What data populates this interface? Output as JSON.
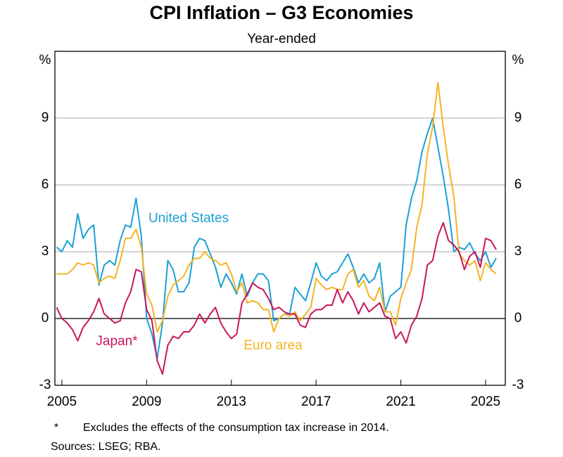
{
  "chart_data": {
    "type": "line",
    "title": "CPI Inflation – G3 Economies",
    "subtitle": "Year-ended",
    "y_unit": "%",
    "y2_unit": "%",
    "footnote_marker": "*",
    "footnote": "Excludes the effects of the consumption tax increase in 2014.",
    "sources": "Sources: LSEG; RBA.",
    "x": [
      2004.75,
      2005,
      2005.25,
      2005.5,
      2005.75,
      2006,
      2006.25,
      2006.5,
      2006.75,
      2007,
      2007.25,
      2007.5,
      2007.75,
      2008,
      2008.25,
      2008.5,
      2008.75,
      2009,
      2009.25,
      2009.5,
      2009.75,
      2010,
      2010.25,
      2010.5,
      2010.75,
      2011,
      2011.25,
      2011.5,
      2011.75,
      2012,
      2012.25,
      2012.5,
      2012.75,
      2013,
      2013.25,
      2013.5,
      2013.75,
      2014,
      2014.25,
      2014.5,
      2014.75,
      2015,
      2015.25,
      2015.5,
      2015.75,
      2016,
      2016.25,
      2016.5,
      2016.75,
      2017,
      2017.25,
      2017.5,
      2017.75,
      2018,
      2018.25,
      2018.5,
      2018.75,
      2019,
      2019.25,
      2019.5,
      2019.75,
      2020,
      2020.25,
      2020.5,
      2020.75,
      2021,
      2021.25,
      2021.5,
      2021.75,
      2022,
      2022.25,
      2022.5,
      2022.75,
      2023,
      2023.25,
      2023.5,
      2023.75,
      2024,
      2024.25,
      2024.5,
      2024.75,
      2025,
      2025.25,
      2025.5
    ],
    "series": [
      {
        "name": "United States",
        "color": "#1ba1d4",
        "values": [
          3.2,
          3.0,
          3.5,
          3.2,
          4.7,
          3.6,
          4.0,
          4.2,
          1.5,
          2.4,
          2.6,
          2.4,
          3.5,
          4.2,
          4.1,
          5.4,
          3.7,
          0.0,
          -0.7,
          -1.8,
          -0.2,
          2.6,
          2.2,
          1.2,
          1.2,
          1.6,
          3.2,
          3.6,
          3.5,
          2.9,
          2.3,
          1.4,
          2.0,
          1.6,
          1.1,
          2.0,
          1.0,
          1.6,
          2.0,
          2.0,
          1.7,
          -0.1,
          0.0,
          0.2,
          0.2,
          1.4,
          1.1,
          0.8,
          1.6,
          2.5,
          1.9,
          1.7,
          2.0,
          2.1,
          2.5,
          2.9,
          2.3,
          1.6,
          2.0,
          1.6,
          1.8,
          2.5,
          0.3,
          1.0,
          1.2,
          1.4,
          4.2,
          5.4,
          6.2,
          7.5,
          8.3,
          9.0,
          7.7,
          6.4,
          4.9,
          3.0,
          3.2,
          3.1,
          3.4,
          2.9,
          2.6,
          3.0,
          2.3,
          2.7
        ]
      },
      {
        "name": "Euro area",
        "color": "#f5b325",
        "values": [
          2.0,
          2.0,
          2.0,
          2.2,
          2.5,
          2.4,
          2.5,
          2.4,
          1.6,
          1.8,
          1.9,
          1.8,
          2.6,
          3.6,
          3.6,
          4.0,
          3.2,
          1.1,
          0.6,
          -0.6,
          -0.1,
          1.0,
          1.5,
          1.7,
          1.9,
          2.4,
          2.7,
          2.7,
          3.0,
          2.7,
          2.6,
          2.4,
          2.5,
          2.0,
          1.2,
          1.6,
          0.7,
          0.8,
          0.7,
          0.4,
          0.4,
          -0.6,
          0.0,
          0.2,
          0.1,
          0.3,
          -0.1,
          0.2,
          0.5,
          1.8,
          1.5,
          1.3,
          1.4,
          1.3,
          1.3,
          2.0,
          2.2,
          1.4,
          1.7,
          1.0,
          0.8,
          1.4,
          0.3,
          0.3,
          -0.3,
          0.9,
          1.6,
          2.2,
          4.1,
          5.1,
          7.4,
          8.6,
          10.6,
          8.6,
          6.9,
          5.5,
          2.9,
          2.6,
          2.4,
          2.6,
          1.7,
          2.5,
          2.2,
          2.0
        ]
      },
      {
        "name": "Japan*",
        "color": "#c8175d",
        "values": [
          0.5,
          0.0,
          -0.2,
          -0.5,
          -1.0,
          -0.4,
          -0.1,
          0.3,
          0.9,
          0.2,
          0.0,
          -0.2,
          -0.1,
          0.7,
          1.2,
          2.2,
          2.1,
          0.4,
          -0.1,
          -1.9,
          -2.5,
          -1.2,
          -0.8,
          -0.9,
          -0.6,
          -0.6,
          -0.3,
          0.2,
          -0.2,
          0.2,
          0.5,
          -0.2,
          -0.6,
          -0.9,
          -0.7,
          0.7,
          1.1,
          1.6,
          1.4,
          1.3,
          0.9,
          0.4,
          0.5,
          0.3,
          0.2,
          0.2,
          -0.3,
          -0.4,
          0.2,
          0.4,
          0.4,
          0.6,
          0.6,
          1.3,
          0.7,
          1.2,
          0.8,
          0.2,
          0.7,
          0.3,
          0.5,
          0.7,
          0.1,
          0.0,
          -0.9,
          -0.6,
          -1.1,
          -0.3,
          0.1,
          0.9,
          2.4,
          2.6,
          3.7,
          4.3,
          3.5,
          3.3,
          3.0,
          2.2,
          2.8,
          3.0,
          2.3,
          3.6,
          3.5,
          3.1
        ]
      }
    ],
    "xlim": [
      2004.67,
      2025.93
    ],
    "xticks": [
      2005,
      2009,
      2013,
      2017,
      2021,
      2025
    ],
    "ylim": [
      -3,
      12
    ],
    "yticks": [
      -3,
      0,
      3,
      6,
      9
    ],
    "y2lim": [
      -3,
      12
    ],
    "y2ticks": [
      -3,
      0,
      3,
      6,
      9
    ],
    "grid": true
  }
}
